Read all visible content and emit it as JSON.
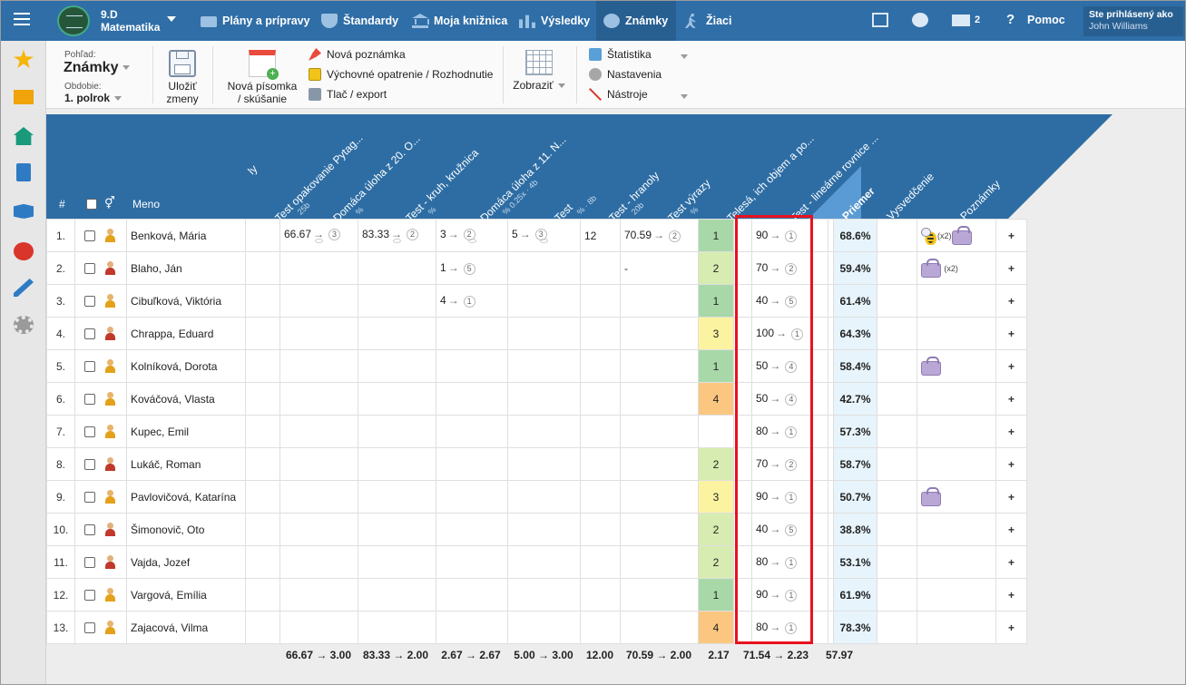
{
  "topbar": {
    "class_line1": "9.D",
    "class_line2": "Matematika",
    "nav": [
      {
        "label": "Plány a prípravy",
        "icon": "briefcase-icon"
      },
      {
        "label": "Štandardy",
        "icon": "shield-icon"
      },
      {
        "label": "Moja knižnica",
        "icon": "bank-icon"
      },
      {
        "label": "Výsledky",
        "icon": "bar-chart-icon"
      },
      {
        "label": "Známky",
        "icon": "grade-icon"
      },
      {
        "label": "Žiaci",
        "icon": "walking-icon"
      }
    ],
    "messages_count": "2",
    "help_label": "Pomoc",
    "help_icon_glyph": "?",
    "logged_as_label": "Ste prihlásený ako",
    "user_name": "John Williams"
  },
  "ribbon": {
    "view_label": "Pohľad:",
    "view_value": "Známky",
    "period_label": "Obdobie:",
    "period_value": "1. polrok",
    "save_line1": "Uložiť",
    "save_line2": "zmeny",
    "newtest_line1": "Nová písomka",
    "newtest_line2": "/ skúšanie",
    "new_note": "Nová poznámka",
    "measure": "Výchovné opatrenie / Rozhodnutie",
    "print": "Tlač / export",
    "show": "Zobraziť",
    "stats": "Štatistika",
    "settings": "Nastavenia",
    "tools": "Nástroje"
  },
  "header": {
    "num": "#",
    "name": "Meno",
    "gender_glyph": "⚥",
    "partial_label": "ly",
    "columns": [
      {
        "label": "Test opakovanie Pytag...",
        "sub": "25b"
      },
      {
        "label": "Domáca úloha z 20. O...",
        "sub": "%"
      },
      {
        "label": "Test - kruh, kružnica",
        "sub": "%"
      },
      {
        "label": "Domáca úloha z 11. N...",
        "sub": "% 0.25x · 4b"
      },
      {
        "label": "Test",
        "sub": "% · 8b"
      },
      {
        "label": "Test - hranoly",
        "sub": "20b"
      },
      {
        "label": "Test výrazy",
        "sub": "%"
      },
      {
        "label": "Telesá, ich objem a po...",
        "sub": ""
      },
      {
        "label": "Test - lineárne rovnice ...",
        "sub": ""
      }
    ],
    "avg": "Priemer",
    "report": "Vysvedčenie",
    "notes": "Poznámky"
  },
  "students": [
    {
      "n": "1.",
      "name": "Benková, Mária",
      "g": "f",
      "c1": {
        "v": "66.67",
        "m": "3",
        "eye": true
      },
      "c2": {
        "v": "83.33",
        "m": "2",
        "eye": true
      },
      "c3": {
        "v": "3",
        "m": "2",
        "eye": true
      },
      "c4": {
        "v": "5",
        "m": "3",
        "eye": true
      },
      "c5": "12",
      "c6": {
        "v": "70.59",
        "m": "2"
      },
      "s": "1",
      "t": {
        "v": "90",
        "m": "1"
      },
      "avg": "68.6%",
      "notes": "bee-bag"
    },
    {
      "n": "2.",
      "name": "Blaho, Ján",
      "g": "m",
      "c3": {
        "v": "1",
        "m": "5"
      },
      "c6": {
        "v": "-"
      },
      "s": "2",
      "t": {
        "v": "70",
        "m": "2"
      },
      "avg": "59.4%",
      "notes": "bag2"
    },
    {
      "n": "3.",
      "name": "Cibuľková, Viktória",
      "g": "f",
      "c3": {
        "v": "4",
        "m": "1"
      },
      "s": "1",
      "t": {
        "v": "40",
        "m": "5"
      },
      "avg": "61.4%"
    },
    {
      "n": "4.",
      "name": "Chrappa, Eduard",
      "g": "m",
      "s": "3",
      "t": {
        "v": "100",
        "m": "1"
      },
      "avg": "64.3%"
    },
    {
      "n": "5.",
      "name": "Kolníková, Dorota",
      "g": "f",
      "s": "1",
      "t": {
        "v": "50",
        "m": "4"
      },
      "avg": "58.4%",
      "notes": "bag"
    },
    {
      "n": "6.",
      "name": "Kováčová, Vlasta",
      "g": "f",
      "s": "4",
      "t": {
        "v": "50",
        "m": "4"
      },
      "avg": "42.7%"
    },
    {
      "n": "7.",
      "name": "Kupec, Emil",
      "g": "f",
      "s": "",
      "t": {
        "v": "80",
        "m": "1"
      },
      "avg": "57.3%"
    },
    {
      "n": "8.",
      "name": "Lukáč, Roman",
      "g": "m",
      "s": "2",
      "t": {
        "v": "70",
        "m": "2"
      },
      "avg": "58.7%"
    },
    {
      "n": "9.",
      "name": "Pavlovičová, Katarína",
      "g": "f",
      "s": "3",
      "t": {
        "v": "90",
        "m": "1"
      },
      "avg": "50.7%",
      "notes": "bag"
    },
    {
      "n": "10.",
      "name": "Šimonovič, Oto",
      "g": "m",
      "s": "2",
      "t": {
        "v": "40",
        "m": "5"
      },
      "avg": "38.8%"
    },
    {
      "n": "11.",
      "name": "Vajda, Jozef",
      "g": "m",
      "s": "2",
      "t": {
        "v": "80",
        "m": "1"
      },
      "avg": "53.1%"
    },
    {
      "n": "12.",
      "name": "Vargová, Emília",
      "g": "f",
      "s": "1",
      "t": {
        "v": "90",
        "m": "1"
      },
      "avg": "61.9%"
    },
    {
      "n": "13.",
      "name": "Zajacová, Vilma",
      "g": "f",
      "s": "4",
      "t": {
        "v": "80",
        "m": "1"
      },
      "avg": "78.3%"
    }
  ],
  "notes_x2": "(x2)",
  "arrow_glyph": "→",
  "plus_glyph": "+",
  "footer": {
    "c1": "66.67 → 3.00",
    "c2": "83.33 → 2.00",
    "c3": "2.67 → 2.67",
    "c4": "5.00 → 3.00",
    "c5": "12.00",
    "c6": "70.59 → 2.00",
    "s": "2.17",
    "t": "71.54 → 2.23",
    "avg": "57.97"
  },
  "colors": {
    "topbar": "#2f6ea7",
    "highlight": "#e8121d",
    "grade1": "#a8d8a8",
    "grade2": "#d7ecb0",
    "grade3": "#fbf3a0",
    "grade4": "#fbc780"
  }
}
